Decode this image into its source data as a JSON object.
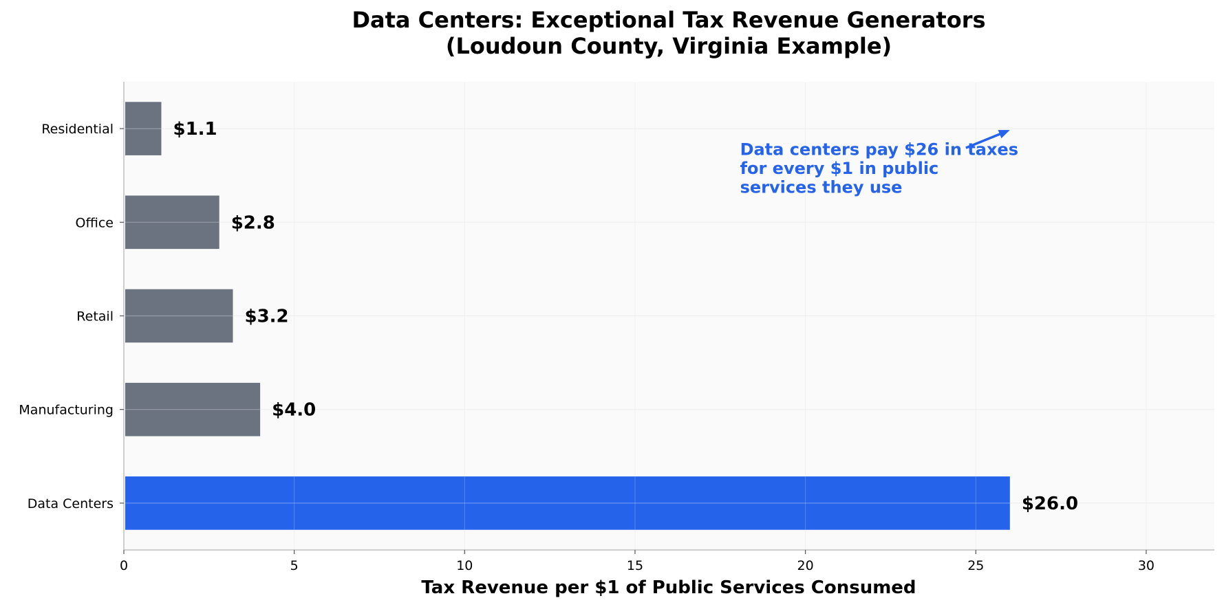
{
  "chart_data": {
    "type": "bar",
    "orientation": "horizontal",
    "title": "Data Centers: Exceptional Tax Revenue Generators",
    "subtitle": "(Loudoun County, Virginia Example)",
    "xlabel": "Tax Revenue per $1 of Public Services Consumed",
    "ylabel": "",
    "categories": [
      "Residential",
      "Office",
      "Retail",
      "Manufacturing",
      "Data Centers"
    ],
    "values": [
      1.1,
      2.8,
      3.2,
      4.0,
      26.0
    ],
    "value_labels": [
      "$1.1",
      "$2.8",
      "$3.2",
      "$4.0",
      "$26.0"
    ],
    "xlim": [
      0,
      32
    ],
    "xticks": [
      0,
      5,
      10,
      15,
      20,
      25,
      30
    ],
    "grid": true,
    "legend": "none",
    "colors": {
      "default_bar": "#6b7280",
      "highlight_bar": "#2563eb",
      "annotation": "#2563eb",
      "background": "#fafafa",
      "axis": "#bfbfbf"
    },
    "highlight_category": "Data Centers",
    "annotation": {
      "lines": [
        "Data centers pay $26 in taxes",
        "for every $1 in public",
        "services they use"
      ],
      "points_to": {
        "category": "Residential",
        "x": 26
      },
      "text_anchor": {
        "category": "Office",
        "x": 18
      }
    }
  }
}
